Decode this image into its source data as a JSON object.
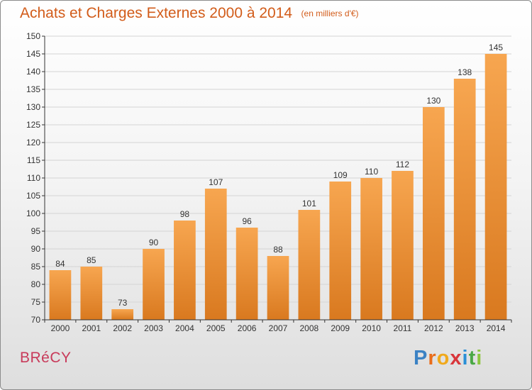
{
  "header": {
    "title": "Achats et Charges Externes 2000 à 2014",
    "unit_note": "(en milliers d'€)"
  },
  "footer": {
    "town": "BRéCY",
    "logo_letters": [
      "P",
      "r",
      "o",
      "x",
      "i",
      "t",
      "i"
    ]
  },
  "colors": {
    "title": "#d25c1a",
    "town": "#c83a5a",
    "bar_light": "#f7a650",
    "bar_dark": "#d9791f",
    "axis": "#333333",
    "grid": "#d4d4d4"
  },
  "chart_data": {
    "type": "bar",
    "categories": [
      "2000",
      "2001",
      "2002",
      "2003",
      "2004",
      "2005",
      "2006",
      "2007",
      "2008",
      "2009",
      "2010",
      "2011",
      "2012",
      "2013",
      "2014"
    ],
    "values": [
      84,
      85,
      73,
      90,
      98,
      107,
      96,
      88,
      101,
      109,
      110,
      112,
      130,
      138,
      145
    ],
    "ylim": [
      70,
      150
    ],
    "yticks": [
      70,
      75,
      80,
      85,
      90,
      95,
      100,
      105,
      110,
      115,
      120,
      125,
      130,
      135,
      140,
      145,
      150
    ],
    "grid": true,
    "data_labels": true
  }
}
